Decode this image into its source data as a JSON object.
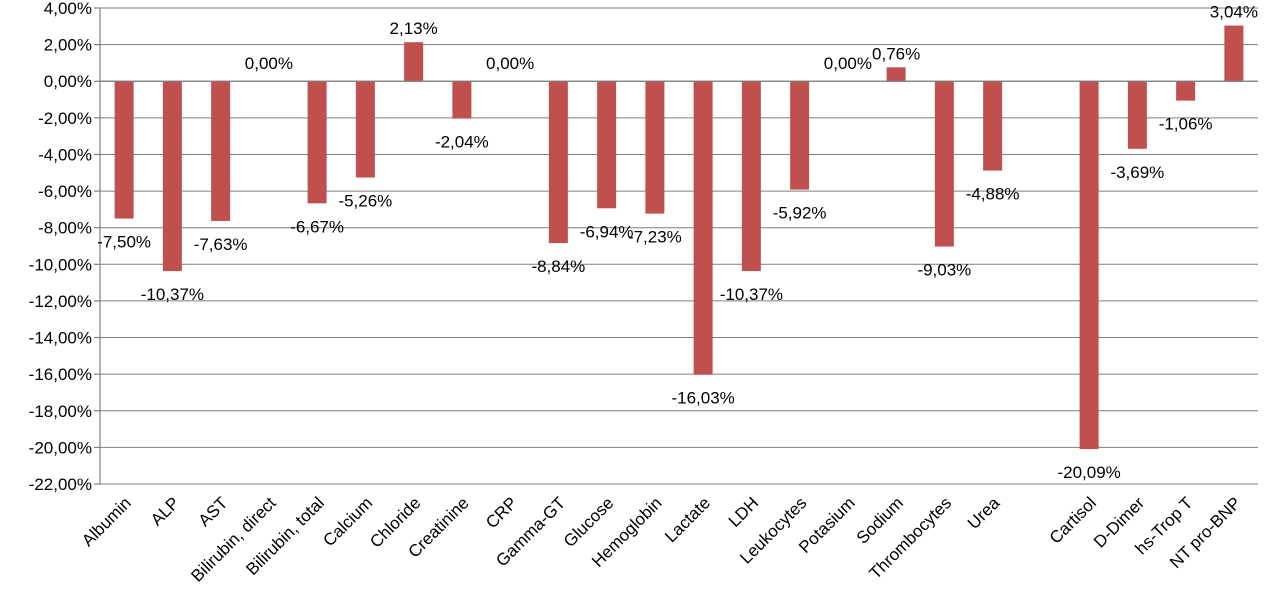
{
  "chart_data": {
    "type": "bar",
    "categories": [
      "Albumin",
      "ALP",
      "AST",
      "Bilirubin, direct",
      "Bilirubin, total",
      "Calcium",
      "Chloride",
      "Creatinine",
      "CRP",
      "Gamma-GT",
      "Glucose",
      "Hemoglobin",
      "Lactate",
      "LDH",
      "Leukocytes",
      "Potasium",
      "Sodium",
      "Thrombocytes",
      "Urea",
      "Cartisol",
      "D-Dimer",
      "hs-Trop T",
      "NT pro-BNP"
    ],
    "gap_before_index": 19,
    "values": [
      -7.5,
      -10.37,
      -7.63,
      0.0,
      -6.67,
      -5.26,
      2.13,
      -2.04,
      0.0,
      -8.84,
      -6.94,
      -7.23,
      -16.03,
      -10.37,
      -5.92,
      0.0,
      0.76,
      -9.03,
      -4.88,
      -20.09,
      -3.69,
      -1.06,
      3.04
    ],
    "data_labels": [
      "-7,50%",
      "-10,37%",
      "-7,63%",
      "0,00%",
      "-6,67%",
      "-5,26%",
      "2,13%",
      "-2,04%",
      "0,00%",
      "-8,84%",
      "-6,94%",
      "-7,23%",
      "-16,03%",
      "-10,37%",
      "-5,92%",
      "0,00%",
      "0,76%",
      "-9,03%",
      "-4,88%",
      "-20,09%",
      "-3,69%",
      "-1,06%",
      "3,04%"
    ],
    "y_ticks": [
      "4,00%",
      "2,00%",
      "0,00%",
      "-2,00%",
      "-4,00%",
      "-6,00%",
      "-8,00%",
      "-10,00%",
      "-12,00%",
      "-14,00%",
      "-16,00%",
      "-18,00%",
      "-20,00%",
      "-22,00%"
    ],
    "ylim": [
      -22,
      4
    ],
    "grid": true,
    "bar_color": "#c0504d",
    "title": "",
    "xlabel": "",
    "ylabel": ""
  }
}
